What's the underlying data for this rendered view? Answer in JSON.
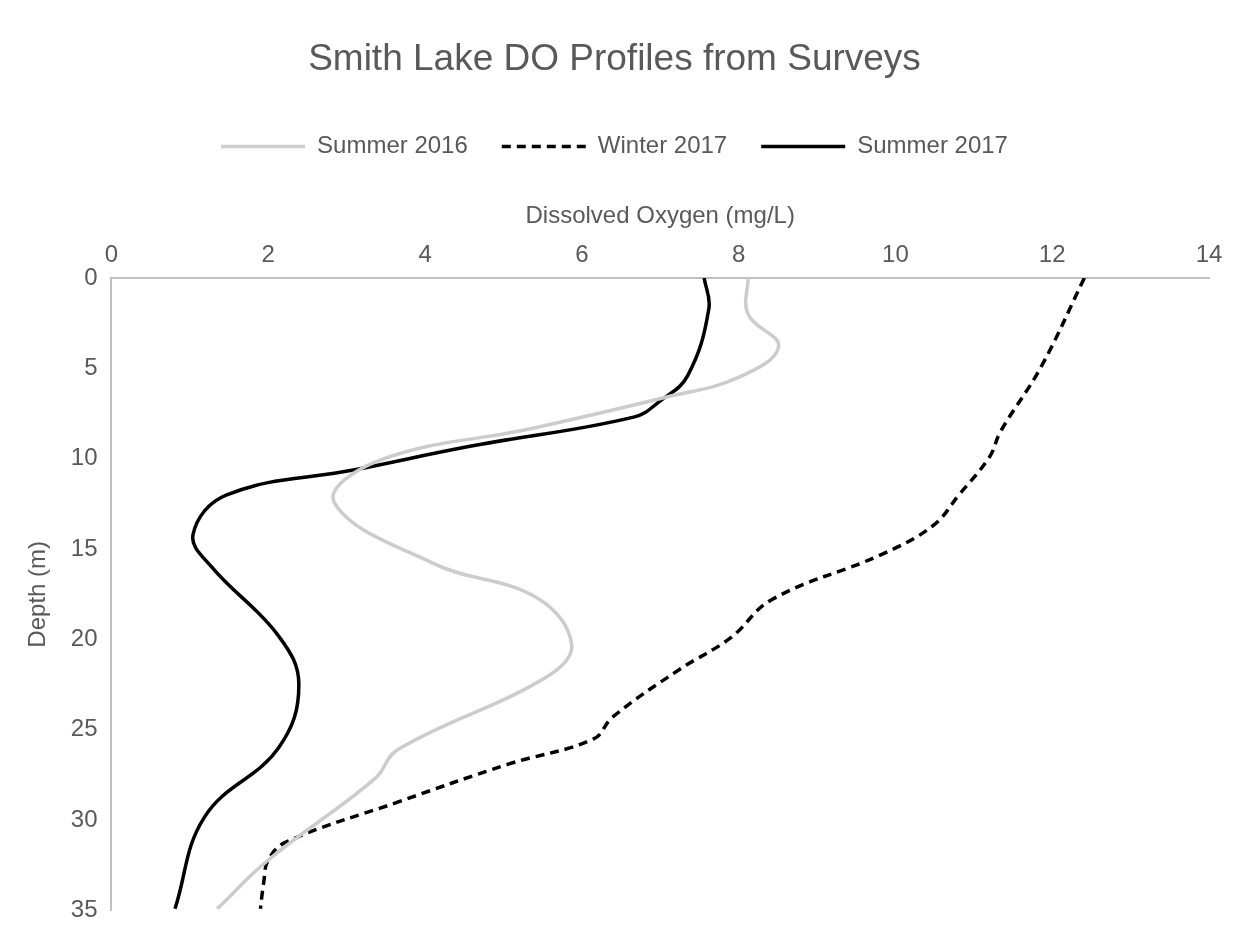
{
  "chart_data": {
    "type": "line",
    "title": "Smith Lake DO Profiles from Surveys",
    "xlabel": "Dissolved Oxygen (mg/L)",
    "ylabel": "Depth (m)",
    "xlim": [
      0,
      14
    ],
    "xticks": [
      0,
      2,
      4,
      6,
      8,
      10,
      12,
      14
    ],
    "ylim": [
      35,
      0
    ],
    "yticks": [
      0,
      5,
      10,
      15,
      20,
      25,
      30,
      35
    ],
    "grid": false,
    "legend": "top",
    "marker": "none",
    "series": [
      {
        "name": "Summer 2016",
        "color": "#cccccc",
        "line_style": "solid",
        "x": [
          8.12,
          8.12,
          8.51,
          8.0,
          7.07,
          5.39,
          3.41,
          2.84,
          4.11,
          5.43,
          5.87,
          5.54,
          3.65,
          3.36,
          2.0,
          1.35
        ],
        "values": [
          0,
          2.0,
          3.8,
          5.5,
          6.6,
          8.3,
          10.1,
          12.4,
          15.8,
          17.7,
          20.3,
          22.1,
          26.1,
          27.7,
          32.2,
          34.9
        ]
      },
      {
        "name": "Winter 2017",
        "color": "#000000",
        "line_style": "dashed",
        "x": [
          12.41,
          11.86,
          11.34,
          11.2,
          10.81,
          10.48,
          9.82,
          8.42,
          7.9,
          7.23,
          6.39,
          6.15,
          5.06,
          3.65,
          2.23,
          2.0,
          1.94,
          1.9
        ],
        "values": [
          0,
          4.9,
          8.5,
          9.9,
          12.0,
          13.7,
          15.3,
          17.8,
          19.9,
          21.7,
          24.3,
          25.5,
          26.9,
          29.0,
          31.2,
          32.2,
          33.5,
          34.9
        ]
      },
      {
        "name": "Summer 2017",
        "color": "#000000",
        "line_style": "solid",
        "x": [
          7.56,
          7.62,
          7.35,
          7.0,
          6.66,
          4.59,
          3.12,
          1.47,
          1.04,
          1.28,
          2.13,
          2.39,
          2.13,
          1.19,
          0.81
        ],
        "values": [
          0,
          1.7,
          5.4,
          6.8,
          7.7,
          9.3,
          10.6,
          12.0,
          14.2,
          16.0,
          19.8,
          22.5,
          26.0,
          29.8,
          34.9
        ]
      }
    ]
  }
}
